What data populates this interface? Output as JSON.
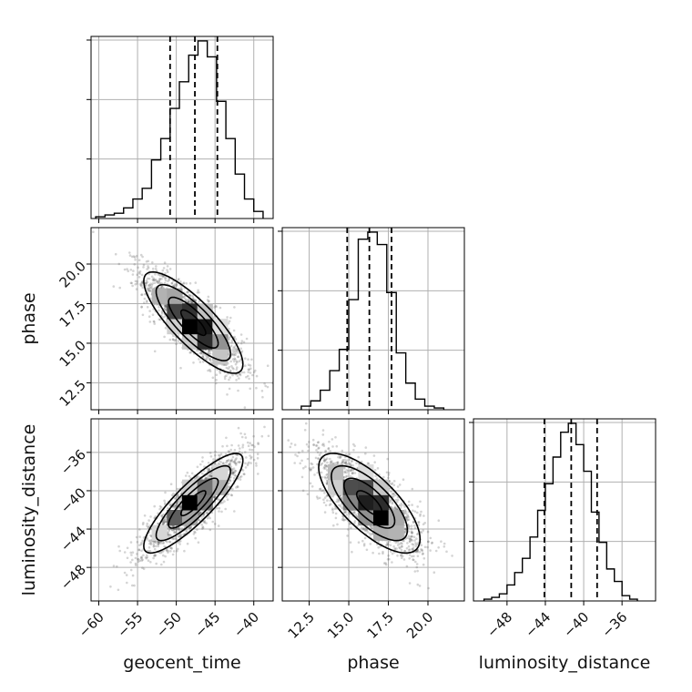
{
  "chart_data": {
    "type": "corner",
    "parameters": [
      "geocent_time",
      "phase",
      "luminosity_distance"
    ],
    "colors": {
      "line": "#000000",
      "grid": "#b0b0b0",
      "points": "#555555",
      "background": "#ffffff"
    },
    "grid": true,
    "ranges": {
      "geocent_time": [
        -61,
        -37.5
      ],
      "phase": [
        10.8,
        22.3
      ],
      "luminosity_distance": [
        -51.5,
        -32.5
      ]
    },
    "ticks": {
      "geocent_time": [
        -60,
        -55,
        -50,
        -45,
        -40
      ],
      "phase": [
        12.5,
        15.0,
        17.5,
        20.0
      ],
      "luminosity_distance": [
        -48,
        -44,
        -40,
        -36
      ]
    },
    "tick_labels": {
      "geocent_time": [
        "−60",
        "−55",
        "−50",
        "−45",
        "−40"
      ],
      "phase": [
        "12.5",
        "15.0",
        "17.5",
        "20.0"
      ],
      "luminosity_distance": [
        "−48",
        "−44",
        "−40",
        "−36"
      ]
    },
    "axis_labels": {
      "geocent_time": "geocent_time",
      "phase": "phase",
      "luminosity_distance": "luminosity_distance"
    },
    "quantiles": {
      "geocent_time": [
        -50.8,
        -47.6,
        -44.7
      ],
      "phase": [
        14.9,
        16.3,
        17.7
      ],
      "luminosity_distance": [
        -44.1,
        -41.3,
        -38.6
      ]
    },
    "histograms": {
      "geocent_time": {
        "edges": [
          -60.4,
          -59.2,
          -58.0,
          -56.8,
          -55.6,
          -54.4,
          -53.2,
          -52.0,
          -50.8,
          -49.6,
          -48.4,
          -47.2,
          -46.0,
          -44.8,
          -43.6,
          -42.4,
          -41.2,
          -40.0,
          -38.8
        ],
        "counts": [
          1,
          2,
          3,
          6,
          11,
          17,
          33,
          45,
          62,
          77,
          92,
          100,
          91,
          66,
          45,
          25,
          11,
          4
        ]
      },
      "phase": {
        "edges": [
          12.0,
          12.6,
          13.2,
          13.8,
          14.4,
          15.0,
          15.6,
          16.2,
          16.8,
          17.4,
          18.0,
          18.6,
          19.2,
          19.8,
          20.4,
          21.0
        ],
        "counts": [
          2,
          5,
          11,
          22,
          34,
          62,
          96,
          100,
          93,
          66,
          32,
          15,
          6,
          2,
          1
        ]
      },
      "luminosity_distance": {
        "edges": [
          -50.4,
          -49.6,
          -48.8,
          -48.0,
          -47.2,
          -46.4,
          -45.6,
          -44.8,
          -44.0,
          -43.2,
          -42.4,
          -41.6,
          -40.8,
          -40.0,
          -39.2,
          -38.4,
          -37.6,
          -36.8,
          -36.0,
          -35.2,
          -34.4
        ],
        "counts": [
          1,
          2,
          4,
          9,
          16,
          24,
          36,
          51,
          66,
          81,
          95,
          100,
          88,
          73,
          50,
          33,
          18,
          11,
          3,
          1
        ]
      }
    },
    "pairs": [
      {
        "x": "geocent_time",
        "y": "phase",
        "mean": [
          -47.8,
          16.3
        ],
        "sd": [
          3.2,
          1.6
        ],
        "corr": -0.82
      },
      {
        "x": "geocent_time",
        "y": "luminosity_distance",
        "mean": [
          -47.8,
          -41.3
        ],
        "sd": [
          3.2,
          2.6
        ],
        "corr": 0.86
      },
      {
        "x": "phase",
        "y": "luminosity_distance",
        "mean": [
          16.3,
          -41.3
        ],
        "sd": [
          1.6,
          2.6
        ],
        "corr": -0.72
      }
    ],
    "contour_levels_sigma": [
      0.5,
      1.0,
      1.5,
      2.0
    ]
  }
}
